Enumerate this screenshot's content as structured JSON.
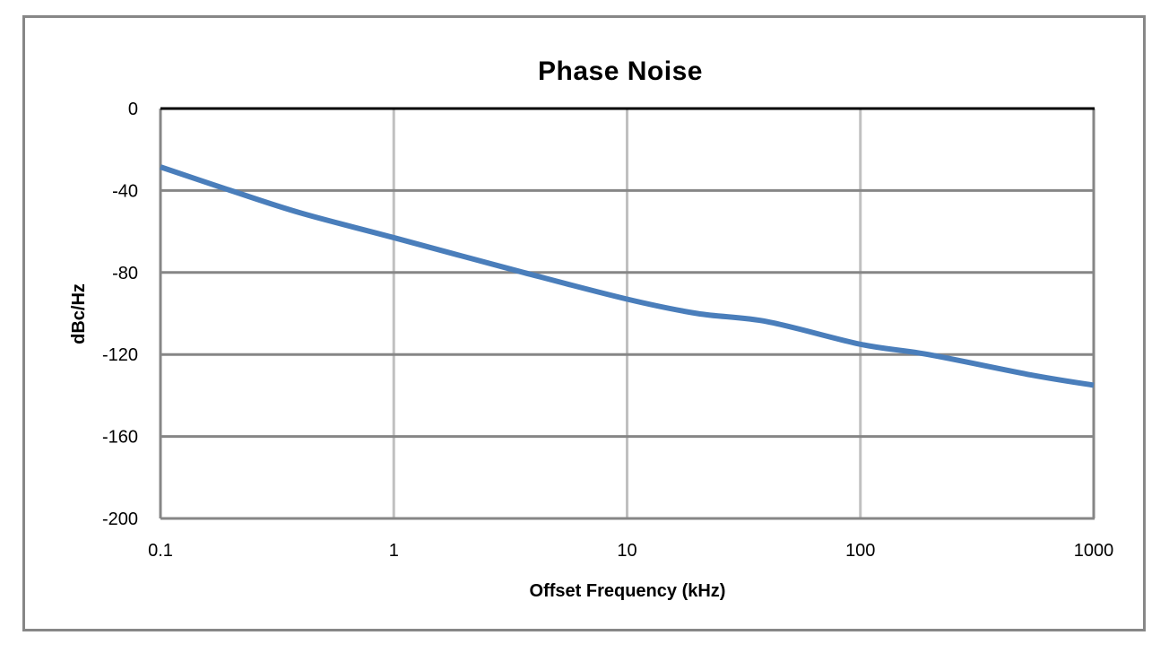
{
  "chart_data": {
    "type": "line",
    "title": "Phase Noise",
    "xlabel": "Offset Frequency (kHz)",
    "ylabel": "dBc/Hz",
    "xscale": "log",
    "xlim": [
      0.1,
      1000
    ],
    "ylim": [
      -200,
      0
    ],
    "x_ticks": [
      "0.1",
      "1",
      "10",
      "100",
      "1000"
    ],
    "y_ticks": [
      "0",
      "-40",
      "-80",
      "-120",
      "-160",
      "-200"
    ],
    "grid": true,
    "legend": null,
    "series": [
      {
        "name": "Phase Noise",
        "color": "#4a7ebb",
        "x": [
          0.1,
          0.2,
          0.4,
          1,
          3.6,
          10,
          20,
          40,
          100,
          195,
          540,
          1000
        ],
        "values": [
          -28.5,
          -40,
          -51,
          -63,
          -80,
          -93,
          -100,
          -104,
          -115,
          -120,
          -130,
          -135
        ]
      }
    ]
  },
  "colors": {
    "line": "#4a7ebb",
    "h_grid": "#868686",
    "v_grid": "#c0c0c0",
    "axis_zero": "#000000",
    "frame": "#878787"
  }
}
